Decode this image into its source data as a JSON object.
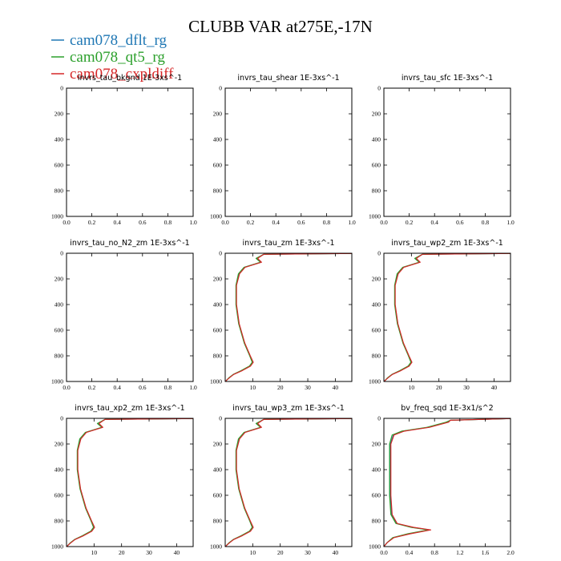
{
  "title": "CLUBB VAR at275E,-17N",
  "legend": [
    {
      "name": "cam078_dflt_rg",
      "color": "#1f77b4"
    },
    {
      "name": "cam078_qt5_rg",
      "color": "#2ca02c"
    },
    {
      "name": "cam078_cxpldiff",
      "color": "#d62728"
    }
  ],
  "chart_data": [
    {
      "type": "line",
      "title": "invrs_tau_bkgnd   1E-3xs^-1",
      "xlim": [
        0,
        1
      ],
      "xticks": [
        "0.0",
        "0.2",
        "0.4",
        "0.6",
        "0.8",
        "1.0"
      ],
      "ylim": [
        1000,
        0
      ],
      "yticks": [
        "0",
        "200",
        "400",
        "600",
        "800",
        "1000"
      ],
      "series": []
    },
    {
      "type": "line",
      "title": "invrs_tau_shear   1E-3xs^-1",
      "xlim": [
        0,
        1
      ],
      "xticks": [
        "0.0",
        "0.2",
        "0.4",
        "0.6",
        "0.8",
        "1.0"
      ],
      "ylim": [
        1000,
        0
      ],
      "yticks": [
        "0",
        "200",
        "400",
        "600",
        "800",
        "1000"
      ],
      "series": []
    },
    {
      "type": "line",
      "title": "invrs_tau_sfc   1E-3xs^-1",
      "xlim": [
        0,
        1
      ],
      "xticks": [
        "0.0",
        "0.2",
        "0.4",
        "0.6",
        "0.8",
        "1.0"
      ],
      "ylim": [
        1000,
        0
      ],
      "yticks": [
        "0",
        "200",
        "400",
        "600",
        "800",
        "1000"
      ],
      "series": []
    },
    {
      "type": "line",
      "title": "invrs_tau_no_N2_zm   1E-3xs^-1",
      "xlim": [
        0,
        1
      ],
      "xticks": [
        "0.0",
        "0.2",
        "0.4",
        "0.6",
        "0.8",
        "1.0"
      ],
      "ylim": [
        1000,
        0
      ],
      "yticks": [
        "0",
        "200",
        "400",
        "600",
        "800",
        "1000"
      ],
      "series": []
    },
    {
      "type": "line",
      "title": "invrs_tau_zm   1E-3xs^-1",
      "xlim": [
        0,
        46
      ],
      "xticks": [
        "10",
        "20",
        "30",
        "40"
      ],
      "ylim": [
        1000,
        0
      ],
      "yticks": [
        "0",
        "200",
        "400",
        "600",
        "800",
        "1000"
      ],
      "series": [
        {
          "name": "cam078_dflt_rg",
          "x": [
            46,
            14,
            11.5,
            13,
            7,
            5,
            4,
            4,
            5,
            7,
            9,
            10,
            9,
            6,
            3,
            1.5,
            0.5,
            0.2
          ],
          "y": [
            2,
            8,
            40,
            70,
            110,
            160,
            250,
            400,
            550,
            700,
            800,
            850,
            880,
            915,
            945,
            970,
            990,
            1000
          ]
        },
        {
          "name": "cam078_qt5_rg",
          "x": [
            46,
            14,
            11.2,
            12.8,
            6.8,
            4.8,
            3.9,
            3.9,
            4.9,
            6.9,
            8.9,
            9.8,
            8.8,
            5.8,
            2.9,
            1.4,
            0.5,
            0.2
          ],
          "y": [
            2,
            8,
            40,
            70,
            110,
            160,
            250,
            400,
            550,
            700,
            800,
            850,
            880,
            915,
            945,
            970,
            990,
            1000
          ]
        },
        {
          "name": "cam078_cxpldiff",
          "x": [
            46,
            14,
            11.8,
            13.2,
            7.2,
            5.2,
            4.1,
            4.1,
            5.1,
            7.1,
            9.1,
            10.2,
            9.2,
            6.2,
            3.1,
            1.6,
            0.5,
            0.2
          ],
          "y": [
            2,
            8,
            40,
            70,
            110,
            160,
            250,
            400,
            550,
            700,
            800,
            850,
            880,
            915,
            945,
            970,
            990,
            1000
          ]
        }
      ]
    },
    {
      "type": "line",
      "title": "invrs_tau_wp2_zm   1E-3xs^-1",
      "xlim": [
        0,
        46
      ],
      "xticks": [
        "10",
        "20",
        "30",
        "40"
      ],
      "ylim": [
        1000,
        0
      ],
      "yticks": [
        "0",
        "200",
        "400",
        "600",
        "800",
        "1000"
      ],
      "series": [
        {
          "name": "cam078_dflt_rg",
          "x": [
            46,
            14,
            11.5,
            13,
            7,
            5,
            4,
            4,
            5,
            7,
            9,
            10,
            9,
            6,
            3,
            1.5,
            0.5,
            0.2
          ],
          "y": [
            2,
            8,
            40,
            70,
            110,
            160,
            250,
            400,
            550,
            700,
            800,
            850,
            880,
            915,
            945,
            970,
            990,
            1000
          ]
        },
        {
          "name": "cam078_qt5_rg",
          "x": [
            46,
            14,
            11.2,
            12.8,
            6.8,
            4.8,
            3.9,
            3.9,
            4.9,
            6.9,
            8.9,
            9.8,
            8.8,
            5.8,
            2.9,
            1.4,
            0.5,
            0.2
          ],
          "y": [
            2,
            8,
            40,
            70,
            110,
            160,
            250,
            400,
            550,
            700,
            800,
            850,
            880,
            915,
            945,
            970,
            990,
            1000
          ]
        },
        {
          "name": "cam078_cxpldiff",
          "x": [
            46,
            14,
            11.8,
            13.2,
            7.2,
            5.2,
            4.1,
            4.1,
            5.1,
            7.1,
            9.1,
            10.2,
            9.2,
            6.2,
            3.1,
            1.6,
            0.5,
            0.2
          ],
          "y": [
            2,
            8,
            40,
            70,
            110,
            160,
            250,
            400,
            550,
            700,
            800,
            850,
            880,
            915,
            945,
            970,
            990,
            1000
          ]
        }
      ]
    },
    {
      "type": "line",
      "title": "invrs_tau_xp2_zm   1E-3xs^-1",
      "xlim": [
        0,
        46
      ],
      "xticks": [
        "10",
        "20",
        "30",
        "40"
      ],
      "ylim": [
        1000,
        0
      ],
      "yticks": [
        "0",
        "200",
        "400",
        "600",
        "800",
        "1000"
      ],
      "series": [
        {
          "name": "cam078_dflt_rg",
          "x": [
            46,
            14,
            11.5,
            13,
            7,
            5,
            4,
            4,
            5,
            7,
            9,
            10,
            9,
            6,
            3,
            1.5,
            0.5,
            0.2
          ],
          "y": [
            2,
            8,
            40,
            70,
            110,
            160,
            250,
            400,
            550,
            700,
            800,
            850,
            880,
            915,
            945,
            970,
            990,
            1000
          ]
        },
        {
          "name": "cam078_qt5_rg",
          "x": [
            46,
            14,
            11.2,
            12.8,
            6.8,
            4.8,
            3.9,
            3.9,
            4.9,
            6.9,
            8.9,
            9.8,
            8.8,
            5.8,
            2.9,
            1.4,
            0.5,
            0.2
          ],
          "y": [
            2,
            8,
            40,
            70,
            110,
            160,
            250,
            400,
            550,
            700,
            800,
            850,
            880,
            915,
            945,
            970,
            990,
            1000
          ]
        },
        {
          "name": "cam078_cxpldiff",
          "x": [
            46,
            14,
            11.8,
            13.2,
            7.2,
            5.2,
            4.1,
            4.1,
            5.1,
            7.1,
            9.1,
            10.2,
            9.2,
            6.2,
            3.1,
            1.6,
            0.5,
            0.2
          ],
          "y": [
            2,
            8,
            40,
            70,
            110,
            160,
            250,
            400,
            550,
            700,
            800,
            850,
            880,
            915,
            945,
            970,
            990,
            1000
          ]
        }
      ]
    },
    {
      "type": "line",
      "title": "invrs_tau_wp3_zm   1E-3xs^-1",
      "xlim": [
        0,
        46
      ],
      "xticks": [
        "10",
        "20",
        "30",
        "40"
      ],
      "ylim": [
        1000,
        0
      ],
      "yticks": [
        "0",
        "200",
        "400",
        "600",
        "800",
        "1000"
      ],
      "series": [
        {
          "name": "cam078_dflt_rg",
          "x": [
            46,
            14,
            11.5,
            13,
            7,
            5,
            4,
            4,
            5,
            7,
            9,
            10,
            9,
            6,
            3,
            1.5,
            0.5,
            0.2
          ],
          "y": [
            2,
            8,
            40,
            70,
            110,
            160,
            250,
            400,
            550,
            700,
            800,
            850,
            880,
            915,
            945,
            970,
            990,
            1000
          ]
        },
        {
          "name": "cam078_qt5_rg",
          "x": [
            46,
            14,
            11.2,
            12.8,
            6.8,
            4.8,
            3.9,
            3.9,
            4.9,
            6.9,
            8.9,
            9.8,
            8.8,
            5.8,
            2.9,
            1.4,
            0.5,
            0.2
          ],
          "y": [
            2,
            8,
            40,
            70,
            110,
            160,
            250,
            400,
            550,
            700,
            800,
            850,
            880,
            915,
            945,
            970,
            990,
            1000
          ]
        },
        {
          "name": "cam078_cxpldiff",
          "x": [
            46,
            14,
            11.8,
            13.2,
            7.2,
            5.2,
            4.1,
            4.1,
            5.1,
            7.1,
            9.1,
            10.2,
            9.2,
            6.2,
            3.1,
            1.6,
            0.5,
            0.2
          ],
          "y": [
            2,
            8,
            40,
            70,
            110,
            160,
            250,
            400,
            550,
            700,
            800,
            850,
            880,
            915,
            945,
            970,
            990,
            1000
          ]
        }
      ]
    },
    {
      "type": "line",
      "title": "bv_freq_sqd   1E-3x1/s^2",
      "xlim": [
        0,
        2
      ],
      "xticks": [
        "0.0",
        "0.4",
        "0.8",
        "1.2",
        "1.6",
        "2.0"
      ],
      "ylim": [
        1000,
        0
      ],
      "yticks": [
        "0",
        "200",
        "400",
        "600",
        "800",
        "1000"
      ],
      "series": [
        {
          "name": "cam078_dflt_rg",
          "x": [
            2.0,
            1.05,
            1.0,
            0.7,
            0.3,
            0.15,
            0.1,
            0.1,
            0.1,
            0.12,
            0.2,
            0.45,
            0.72,
            0.4,
            0.15,
            0.05,
            0.0
          ],
          "y": [
            2,
            15,
            30,
            70,
            100,
            130,
            200,
            400,
            600,
            750,
            820,
            850,
            870,
            900,
            930,
            970,
            1000
          ]
        },
        {
          "name": "cam078_qt5_rg",
          "x": [
            2.0,
            1.05,
            0.98,
            0.68,
            0.28,
            0.13,
            0.09,
            0.09,
            0.09,
            0.11,
            0.19,
            0.43,
            0.7,
            0.38,
            0.14,
            0.05,
            0.0
          ],
          "y": [
            2,
            15,
            30,
            70,
            100,
            130,
            200,
            400,
            600,
            750,
            820,
            850,
            870,
            900,
            930,
            970,
            1000
          ]
        },
        {
          "name": "cam078_cxpldiff",
          "x": [
            2.0,
            1.05,
            1.02,
            0.72,
            0.32,
            0.16,
            0.11,
            0.11,
            0.11,
            0.13,
            0.21,
            0.47,
            0.74,
            0.42,
            0.16,
            0.05,
            0.0
          ],
          "y": [
            2,
            15,
            30,
            70,
            100,
            130,
            200,
            400,
            600,
            750,
            820,
            850,
            870,
            900,
            930,
            970,
            1000
          ]
        }
      ]
    }
  ]
}
